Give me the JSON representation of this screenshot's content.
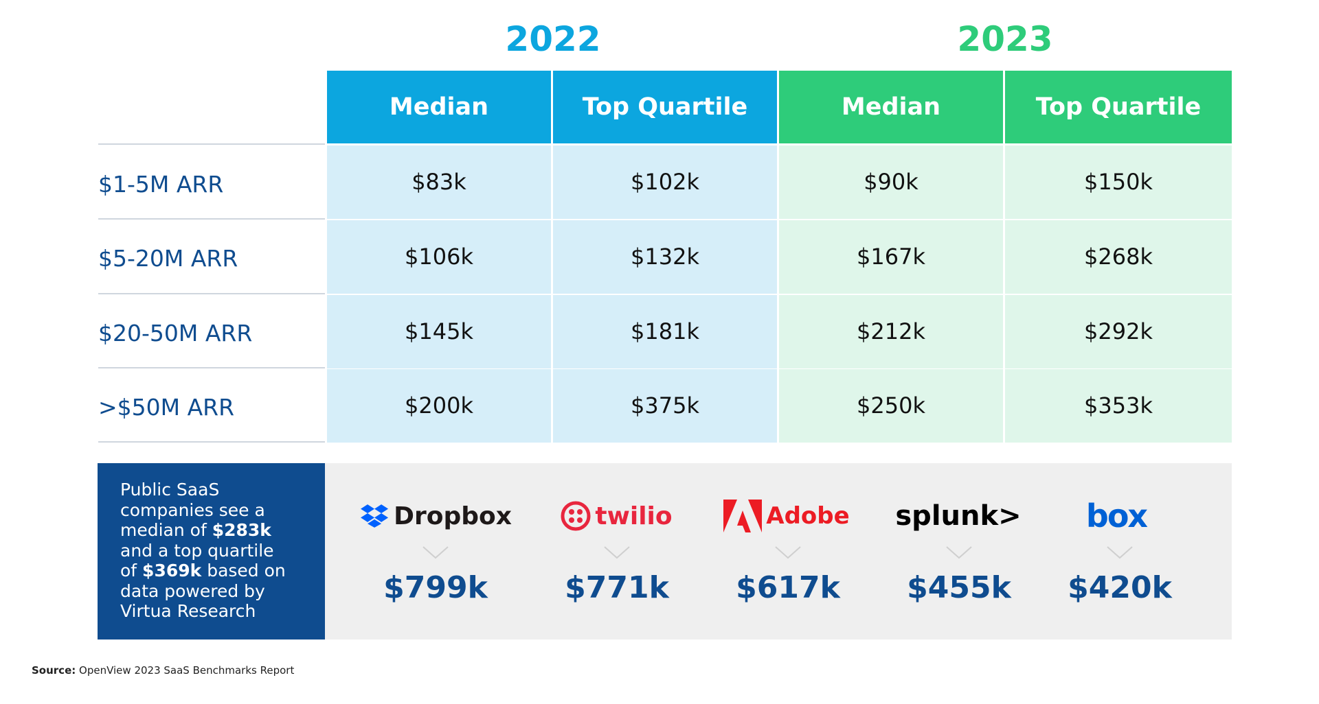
{
  "colors": {
    "blue_accent": "#0ca6df",
    "green_accent": "#2ecc7a",
    "blue_cell": "#d6eef9",
    "green_cell": "#dff6ea",
    "navy": "#0f4c8f",
    "panel_bg": "#efefef"
  },
  "chart_data": {
    "type": "table",
    "years": [
      "2022",
      "2023"
    ],
    "columns": [
      "Median",
      "Top Quartile",
      "Median",
      "Top Quartile"
    ],
    "rows": [
      {
        "label": "$1-5M ARR",
        "values": [
          "$83k",
          "$102k",
          "$90k",
          "$150k"
        ]
      },
      {
        "label": "$5-20M ARR",
        "values": [
          "$106k",
          "$132k",
          "$167k",
          "$268k"
        ]
      },
      {
        "label": "$20-50M ARR",
        "values": [
          "$145k",
          "$181k",
          "$212k",
          "$292k"
        ]
      },
      {
        "label": ">$50M ARR",
        "values": [
          "$200k",
          "$375k",
          "$250k",
          "$353k"
        ]
      }
    ]
  },
  "note": {
    "line1": "Public SaaS",
    "line2": "companies see a",
    "line3_pre": "median of ",
    "line3_bold": "$283k",
    "line4": "and a top quartile",
    "line5_pre": "of ",
    "line5_bold": "$369k",
    "line5_post": " based on",
    "line6": "data powered by",
    "line7": "Virtua Research"
  },
  "companies": [
    {
      "name": "Dropbox",
      "icon": "dropbox-icon",
      "amount": "$799k"
    },
    {
      "name": "twilio",
      "icon": "twilio-icon",
      "amount": "$771k"
    },
    {
      "name": "Adobe",
      "icon": "adobe-icon",
      "amount": "$617k"
    },
    {
      "name": "splunk>",
      "icon": "splunk-icon",
      "amount": "$455k"
    },
    {
      "name": "box",
      "icon": "box-icon",
      "amount": "$420k"
    }
  ],
  "source": {
    "label": "Source:",
    "text": " OpenView 2023 SaaS Benchmarks Report"
  }
}
